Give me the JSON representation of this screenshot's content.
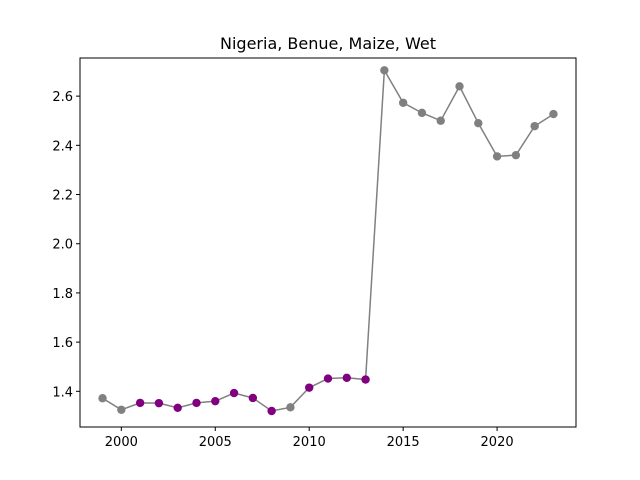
{
  "chart_data": {
    "type": "line",
    "title": "Nigeria, Benue, Maize, Wet",
    "xlabel": "",
    "ylabel": "",
    "xlim": [
      1997.8,
      2024.2
    ],
    "ylim": [
      1.255,
      2.755
    ],
    "x_ticks": [
      2000,
      2005,
      2010,
      2015,
      2020
    ],
    "y_ticks": [
      1.4,
      1.6,
      1.8,
      2.0,
      2.2,
      2.4,
      2.6
    ],
    "grid": false,
    "legend": "none",
    "line_color": "#808080",
    "series": [
      {
        "x": [
          1999,
          2000,
          2001,
          2002,
          2003,
          2004,
          2005,
          2006,
          2007,
          2008,
          2009,
          2010,
          2011,
          2012,
          2013,
          2014,
          2015,
          2016,
          2017,
          2018,
          2019,
          2020,
          2021,
          2022,
          2023
        ],
        "values": [
          1.372,
          1.325,
          1.353,
          1.352,
          1.333,
          1.353,
          1.36,
          1.393,
          1.373,
          1.32,
          1.335,
          1.415,
          1.452,
          1.455,
          1.448,
          2.705,
          2.573,
          2.532,
          2.5,
          2.64,
          2.49,
          2.355,
          2.36,
          2.478,
          2.527
        ],
        "point_colors": [
          "#808080",
          "#808080",
          "#800080",
          "#800080",
          "#800080",
          "#800080",
          "#800080",
          "#800080",
          "#800080",
          "#800080",
          "#808080",
          "#800080",
          "#800080",
          "#800080",
          "#800080",
          "#808080",
          "#808080",
          "#808080",
          "#808080",
          "#808080",
          "#808080",
          "#808080",
          "#808080",
          "#808080",
          "#808080"
        ]
      }
    ]
  }
}
